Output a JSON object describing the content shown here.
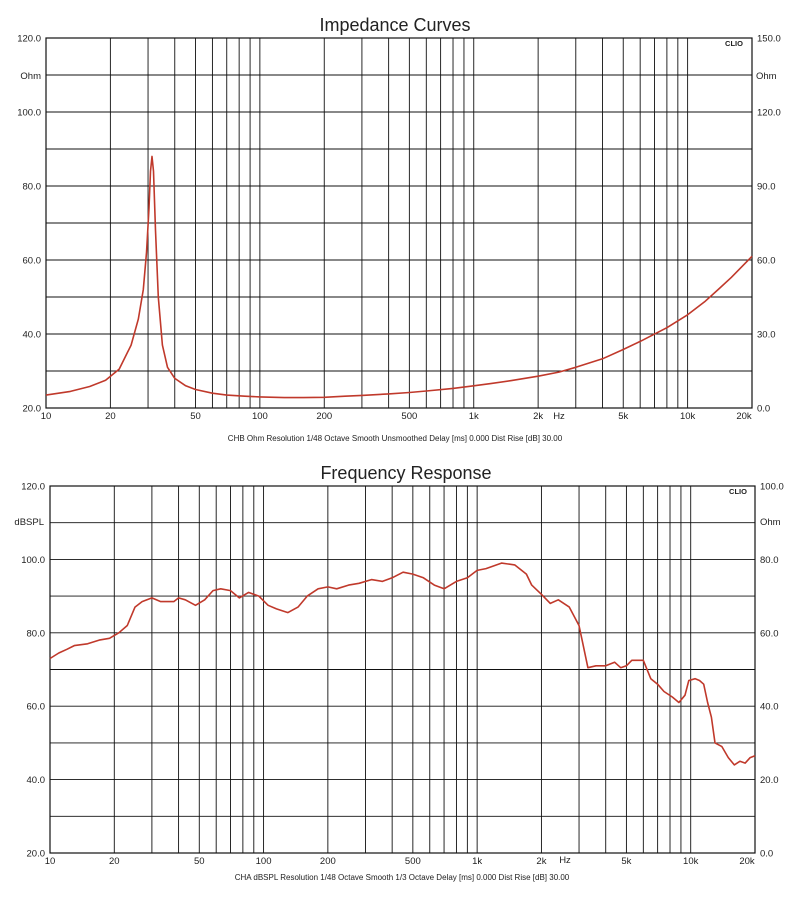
{
  "chart_data": [
    {
      "type": "line",
      "title": "Impedance Curves",
      "caption": "CHB Ohm Resolution 1/48 Octave Smooth Unsmoothed Delay [ms] 0.000 Dist Rise [dB] 30.00",
      "brand": "CLIO",
      "x_scale": "log",
      "xlim": [
        10,
        20000
      ],
      "x_ticks": [
        10,
        20,
        50,
        100,
        200,
        500,
        1000,
        2000,
        5000,
        10000,
        20000
      ],
      "x_tick_labels": [
        "10",
        "20",
        "50",
        "100",
        "200",
        "500",
        "1k",
        "2k",
        "5k",
        "10k",
        "20k"
      ],
      "x_unit": "Hz",
      "ylabel": "Ohm",
      "ylim": [
        20,
        120
      ],
      "y_ticks": [
        20,
        40,
        60,
        80,
        100,
        120
      ],
      "y_tick_labels": [
        "20.0",
        "40.0",
        "60.0",
        "80.0",
        "100.0",
        "120.0"
      ],
      "y2label": "Ohm",
      "y2_tick_labels": [
        "0.0",
        "30.0",
        "60.0",
        "90.0",
        "120.0",
        "150.0"
      ],
      "grid": true,
      "color": "#c0392b",
      "series": [
        {
          "x": [
            10,
            13,
            16,
            19,
            22,
            25,
            27,
            28.5,
            29.5,
            30.3,
            30.8,
            31.3,
            31.8,
            32.5,
            33.5,
            35,
            37,
            40,
            45,
            50,
            60,
            70,
            85,
            100,
            130,
            160,
            200,
            250,
            300,
            400,
            500,
            600,
            800,
            1000,
            1200,
            1500,
            2000,
            2500,
            3000,
            4000,
            5000,
            6000,
            8000,
            10000,
            12000,
            14000,
            16000,
            18000,
            20000
          ],
          "y": [
            23.5,
            24.5,
            25.8,
            27.5,
            30.5,
            37,
            44,
            52,
            62,
            74,
            84,
            88,
            84,
            68,
            50,
            37,
            31,
            28,
            26,
            25,
            24,
            23.5,
            23.2,
            23,
            22.8,
            22.8,
            22.9,
            23.2,
            23.4,
            23.8,
            24.2,
            24.6,
            25.3,
            26,
            26.6,
            27.4,
            28.6,
            29.7,
            31,
            33.3,
            35.8,
            38,
            41.7,
            45.2,
            48.7,
            52.2,
            55.3,
            58.3,
            61
          ]
        }
      ]
    },
    {
      "type": "line",
      "title": "Frequency Response",
      "caption": "CHA dBSPL Resolution 1/48 Octave Smooth 1/3 Octave Delay [ms] 0.000 Dist Rise [dB] 30.00",
      "brand": "CLIO",
      "x_scale": "log",
      "xlim": [
        10,
        20000
      ],
      "x_ticks": [
        10,
        20,
        50,
        100,
        200,
        500,
        1000,
        2000,
        5000,
        10000,
        20000
      ],
      "x_tick_labels": [
        "10",
        "20",
        "50",
        "100",
        "200",
        "500",
        "1k",
        "2k",
        "5k",
        "10k",
        "20k"
      ],
      "x_unit": "Hz",
      "ylabel": "dBSPL",
      "ylim": [
        20,
        120
      ],
      "y_ticks": [
        20,
        40,
        60,
        80,
        100,
        120
      ],
      "y_tick_labels": [
        "20.0",
        "40.0",
        "60.0",
        "80.0",
        "100.0",
        "120.0"
      ],
      "y2label": "Ohm",
      "y2_tick_labels": [
        "0.0",
        "20.0",
        "40.0",
        "60.0",
        "80.0",
        "100.0"
      ],
      "grid": true,
      "color": "#c0392b",
      "series": [
        {
          "x": [
            10,
            11,
            12,
            13,
            15,
            17,
            19,
            21,
            23,
            25,
            27,
            30,
            33,
            38,
            40,
            43,
            48,
            53,
            58,
            63,
            70,
            77,
            85,
            95,
            105,
            115,
            130,
            145,
            160,
            180,
            200,
            220,
            250,
            280,
            320,
            360,
            400,
            450,
            500,
            560,
            630,
            700,
            800,
            900,
            1000,
            1100,
            1300,
            1500,
            1700,
            1800,
            2000,
            2200,
            2400,
            2700,
            3000,
            3100,
            3300,
            3600,
            4000,
            4400,
            4700,
            5000,
            5300,
            5600,
            6000,
            6500,
            7000,
            7500,
            8200,
            8800,
            9400,
            9800,
            10500,
            11000,
            11500,
            12000,
            12500,
            13000,
            14000,
            15000,
            16000,
            17000,
            18000,
            19000,
            20000
          ],
          "y": [
            73,
            74.5,
            75.5,
            76.5,
            77,
            78,
            78.5,
            80,
            82,
            87,
            88.5,
            89.5,
            88.5,
            88.5,
            89.5,
            89,
            87.5,
            89,
            91.5,
            92,
            91.5,
            89.5,
            91,
            90,
            87.5,
            86.5,
            85.5,
            87,
            90,
            92,
            92.5,
            92,
            93,
            93.5,
            94.5,
            94,
            95,
            96.5,
            96,
            95,
            93,
            92,
            94,
            95,
            97,
            97.5,
            99,
            98.5,
            96,
            93,
            90.5,
            88,
            89,
            87,
            82,
            78,
            70.5,
            71,
            71,
            72,
            70.5,
            71,
            72.5,
            72.5,
            72.5,
            67.5,
            66,
            64,
            62.5,
            61,
            63,
            67,
            67.5,
            67,
            66,
            61,
            57,
            50,
            49,
            46,
            44,
            45,
            44.5,
            46,
            46.5
          ]
        }
      ]
    }
  ]
}
